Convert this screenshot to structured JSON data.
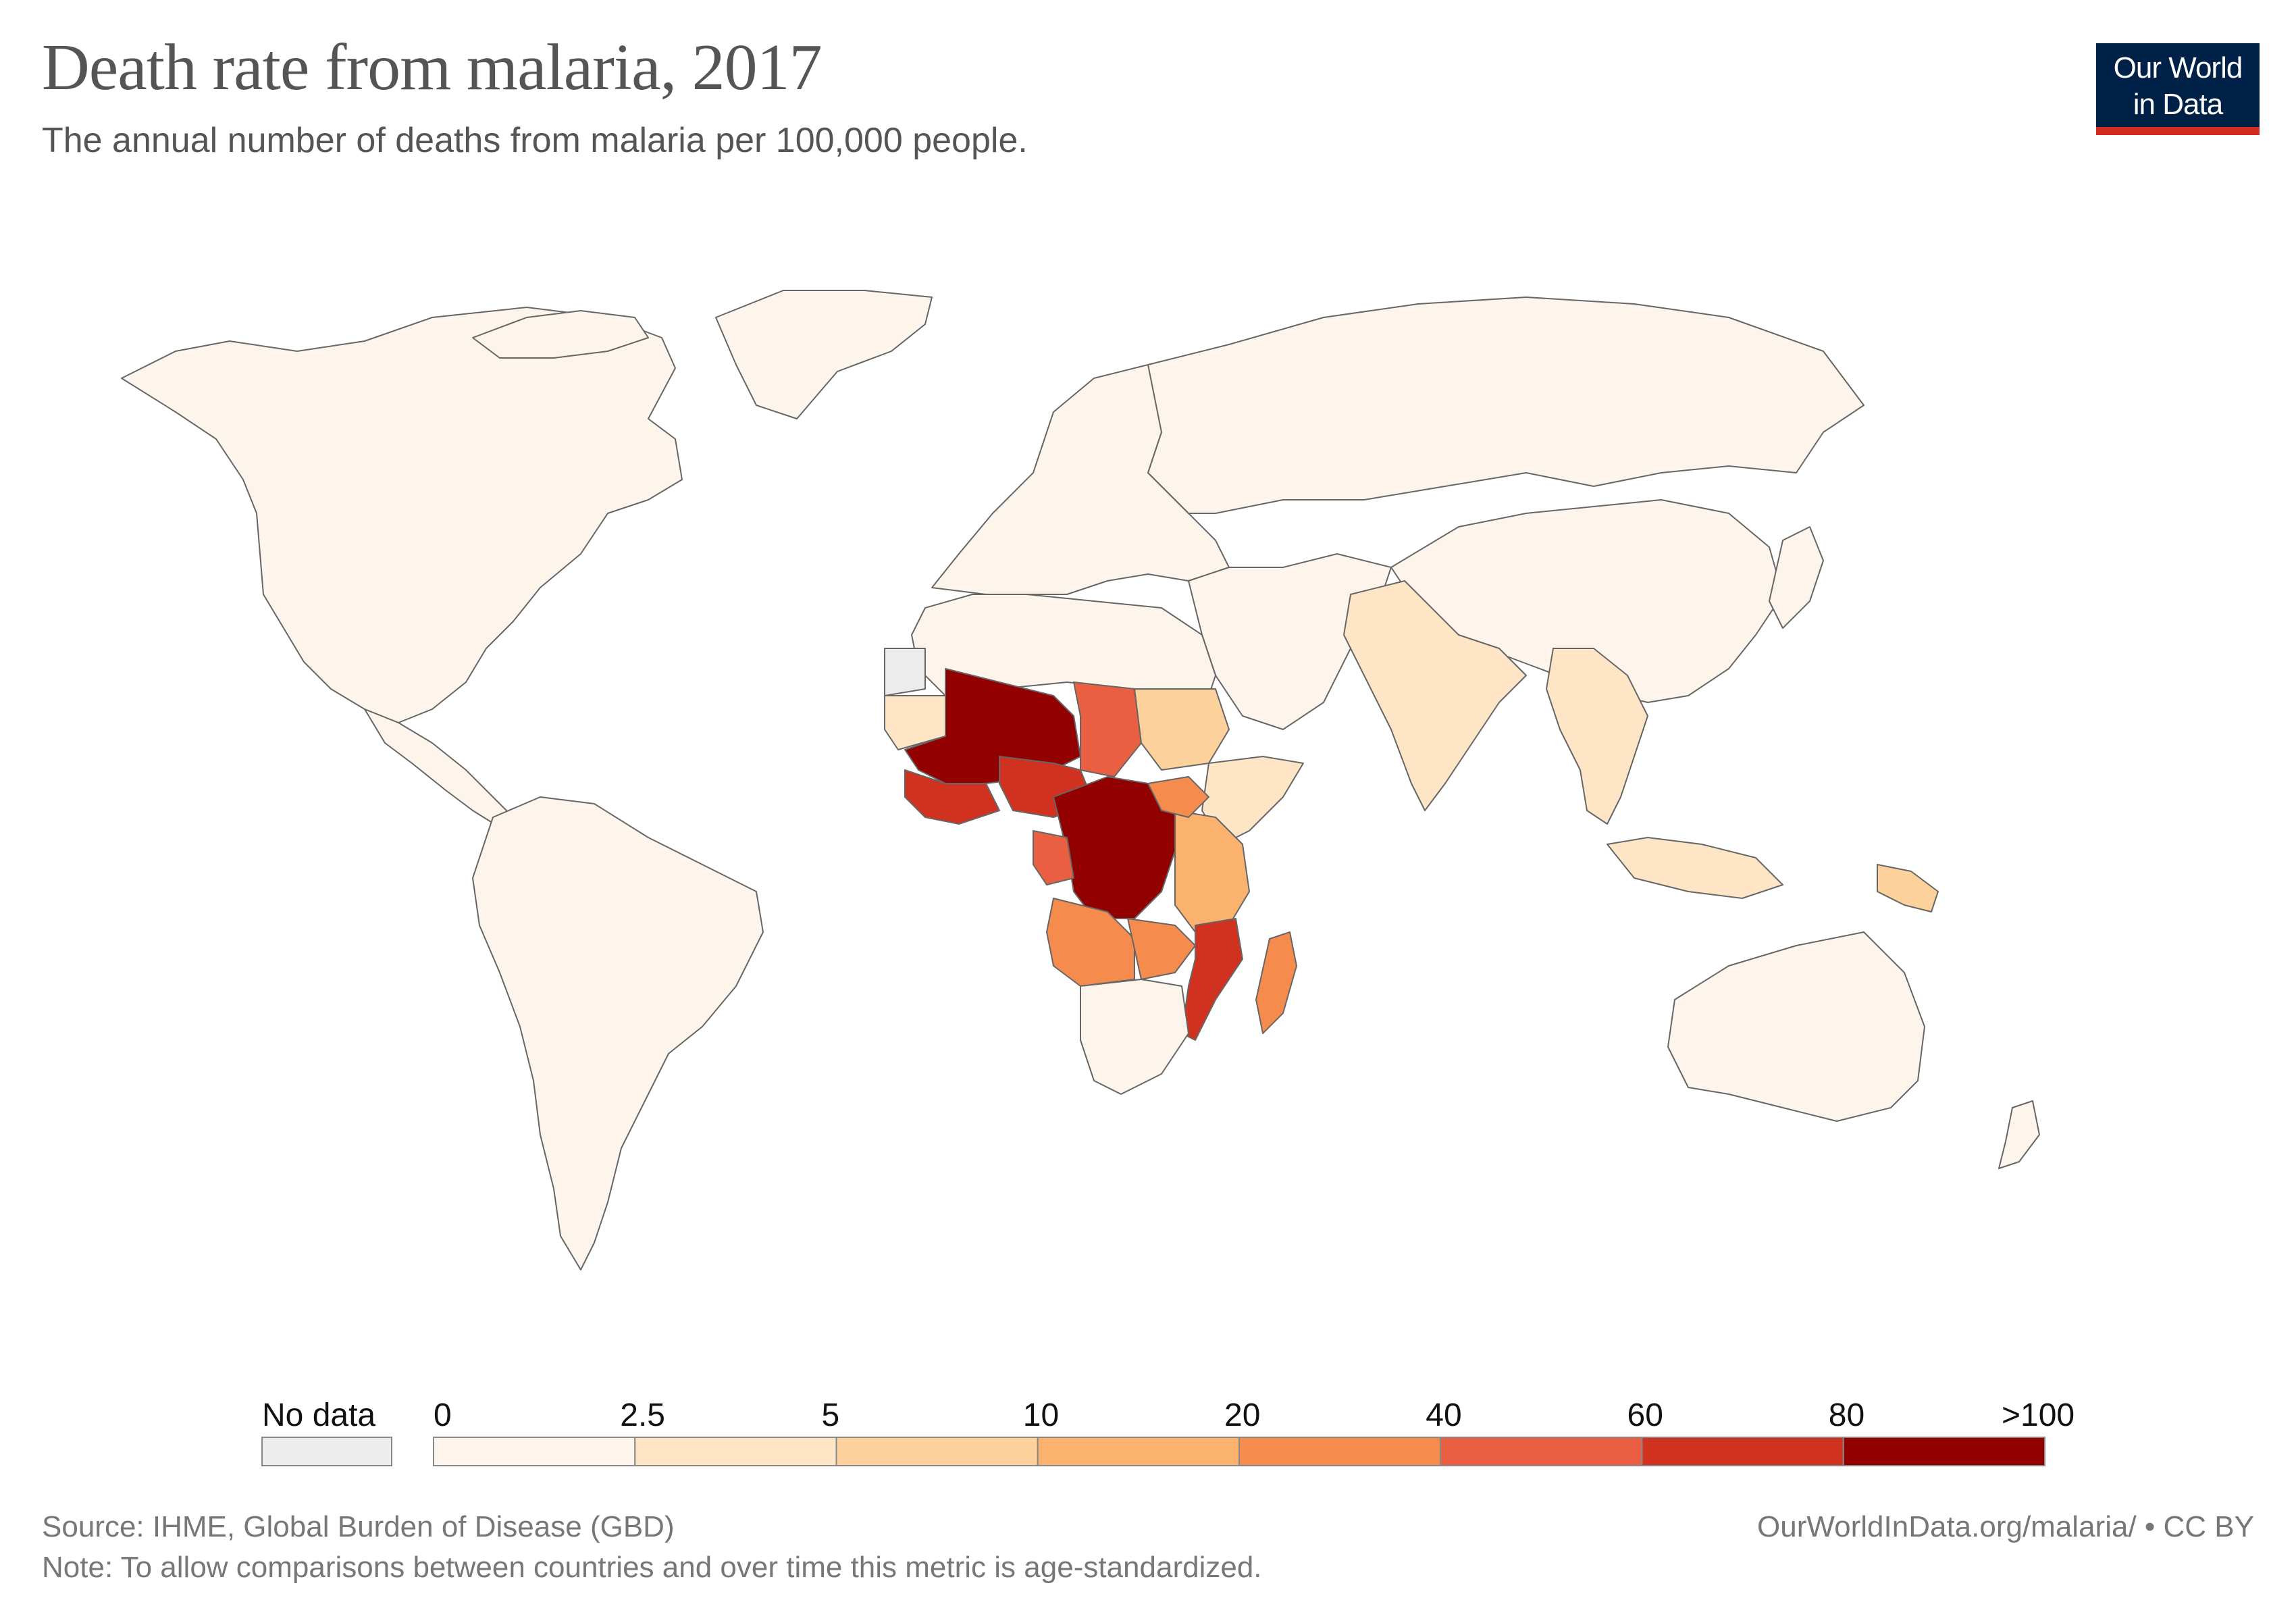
{
  "header": {
    "title": "Death rate from malaria, 2017",
    "subtitle": "The annual number of deaths from malaria per 100,000 people."
  },
  "logo": {
    "line1": "Our World",
    "line2": "in Data"
  },
  "legend": {
    "no_data_label": "No data",
    "no_data_color": "#ececec",
    "ticks": [
      "0",
      "2.5",
      "5",
      "10",
      "20",
      "40",
      "60",
      "80",
      ">100"
    ],
    "colors": [
      "#fdf5eb",
      "#fde5c6",
      "#fdd19c",
      "#fbb26e",
      "#f68b4e",
      "#ea5f42",
      "#d1311f",
      "#930000"
    ]
  },
  "footer": {
    "source": "Source: IHME, Global Burden of Disease (GBD)",
    "note": "Note: To allow comparisons between countries and over time this metric is age-standardized.",
    "url": "OurWorldInData.org/malaria/ • CC BY"
  },
  "map": {
    "land_color": "#fdf5eb",
    "border_color": "#666666"
  }
}
